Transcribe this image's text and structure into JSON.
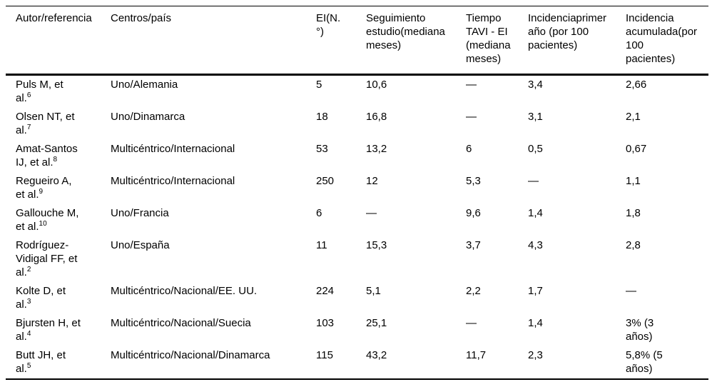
{
  "page": {
    "background": "#ffffff",
    "text_color": "#000000",
    "rule_color": "#000000"
  },
  "table": {
    "columns": [
      {
        "label": "Autor/referencia"
      },
      {
        "label": "Centros/país"
      },
      {
        "label": "EI(N.\n°)"
      },
      {
        "label": "Seguimiento\nestudio(mediana\nmeses)"
      },
      {
        "label": "Tiempo\nTAVI - EI\n(mediana\nmeses)"
      },
      {
        "label": "Incidenciaprimer\naño (por 100\npacientes)"
      },
      {
        "label": "Incidencia\nacumulada(por\n100\npacientes)"
      }
    ],
    "rows": [
      {
        "autor": "Puls M, et\nal.",
        "ref": "6",
        "centros": "Uno/Alemania",
        "ei": "5",
        "seguimiento": "10,6",
        "tiempo_tavi_ei": "—",
        "incidencia_primer_ano": "3,4",
        "incidencia_acumulada": "2,66"
      },
      {
        "autor": "Olsen NT, et\nal.",
        "ref": "7",
        "centros": "Uno/Dinamarca",
        "ei": "18",
        "seguimiento": "16,8",
        "tiempo_tavi_ei": "—",
        "incidencia_primer_ano": "3,1",
        "incidencia_acumulada": "2,1"
      },
      {
        "autor": "Amat-Santos\nIJ, et al.",
        "ref": "8",
        "centros": "Multicéntrico/Internacional",
        "ei": "53",
        "seguimiento": "13,2",
        "tiempo_tavi_ei": "6",
        "incidencia_primer_ano": "0,5",
        "incidencia_acumulada": "0,67"
      },
      {
        "autor": "Regueiro A,\net al.",
        "ref": "9",
        "centros": "Multicéntrico/Internacional",
        "ei": "250",
        "seguimiento": "12",
        "tiempo_tavi_ei": "5,3",
        "incidencia_primer_ano": "—",
        "incidencia_acumulada": "1,1"
      },
      {
        "autor": "Gallouche M,\net al.",
        "ref": "10",
        "centros": "Uno/Francia",
        "ei": "6",
        "seguimiento": "—",
        "tiempo_tavi_ei": "9,6",
        "incidencia_primer_ano": "1,4",
        "incidencia_acumulada": "1,8"
      },
      {
        "autor": "Rodríguez-\nVidigal FF, et\nal.",
        "ref": "2",
        "centros": "Uno/España",
        "ei": "11",
        "seguimiento": "15,3",
        "tiempo_tavi_ei": "3,7",
        "incidencia_primer_ano": "4,3",
        "incidencia_acumulada": "2,8"
      },
      {
        "autor": "Kolte D, et\nal.",
        "ref": "3",
        "centros": "Multicéntrico/Nacional/EE. UU.",
        "ei": "224",
        "seguimiento": "5,1",
        "tiempo_tavi_ei": "2,2",
        "incidencia_primer_ano": "1,7",
        "incidencia_acumulada": "—"
      },
      {
        "autor": "Bjursten H, et\nal.",
        "ref": "4",
        "centros": "Multicéntrico/Nacional/Suecia",
        "ei": "103",
        "seguimiento": "25,1",
        "tiempo_tavi_ei": "—",
        "incidencia_primer_ano": "1,4",
        "incidencia_acumulada": "3% (3\naños)"
      },
      {
        "autor": "Butt JH, et\nal.",
        "ref": "5",
        "centros": "Multicéntrico/Nacional/Dinamarca",
        "ei": "115",
        "seguimiento": "43,2",
        "tiempo_tavi_ei": "11,7",
        "incidencia_primer_ano": "2,3",
        "incidencia_acumulada": "5,8% (5\naños)"
      }
    ]
  }
}
